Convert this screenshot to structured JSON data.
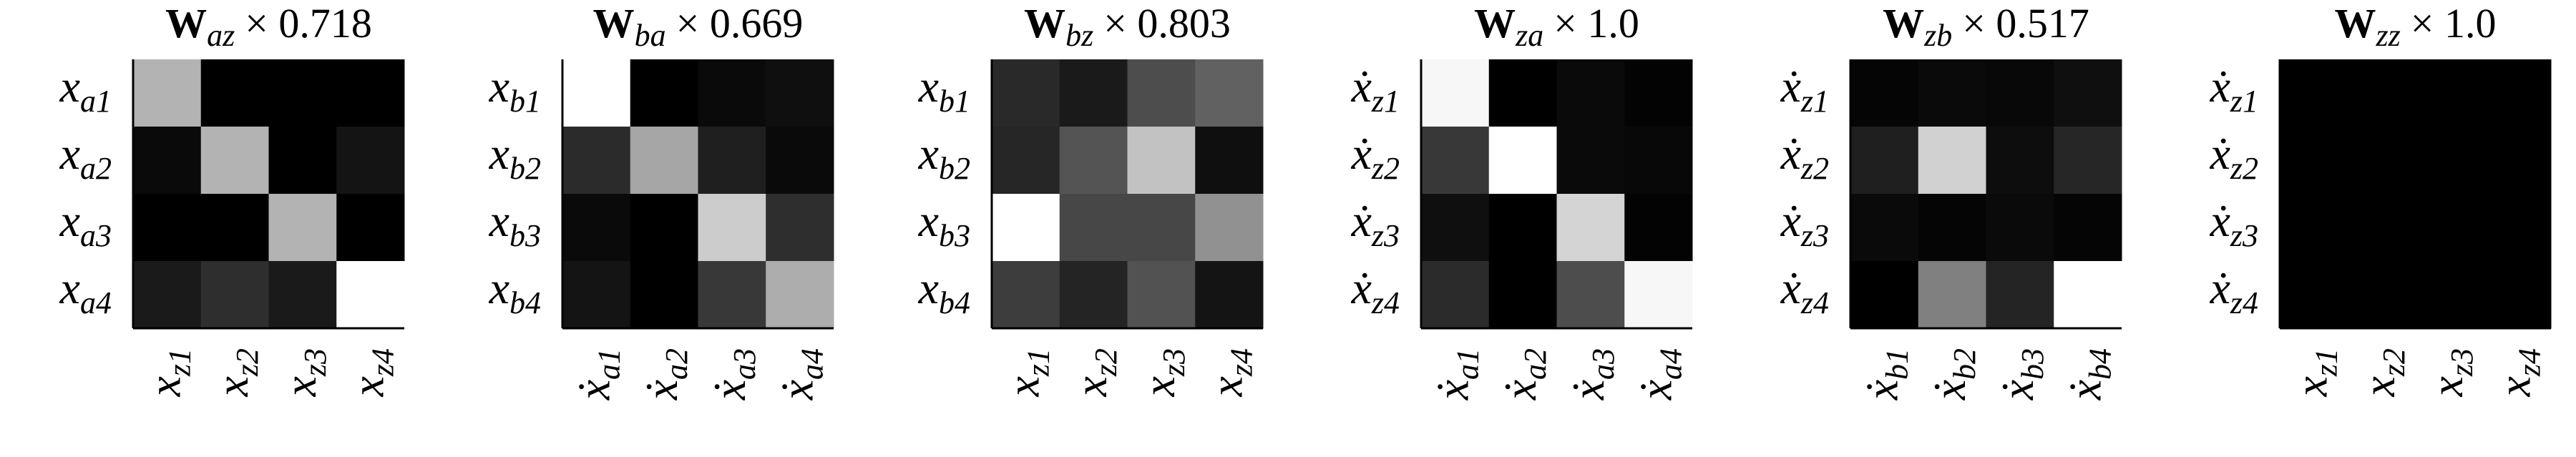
{
  "chart_data": [
    {
      "type": "heatmap",
      "cmap": "gray",
      "vlim": [
        0,
        1
      ],
      "title": {
        "symbol": "W",
        "subscript": "az",
        "suffix": "× 0.718"
      },
      "rows": [
        {
          "base": "x",
          "sub": "a1"
        },
        {
          "base": "x",
          "sub": "a2"
        },
        {
          "base": "x",
          "sub": "a3"
        },
        {
          "base": "x",
          "sub": "a4"
        }
      ],
      "columns": [
        {
          "base": "x",
          "sub": "z1"
        },
        {
          "base": "x",
          "sub": "z2"
        },
        {
          "base": "x",
          "sub": "z3"
        },
        {
          "base": "x",
          "sub": "z4"
        }
      ],
      "values": [
        [
          0.7,
          0,
          0,
          0
        ],
        [
          0.04,
          0.7,
          0,
          0.08
        ],
        [
          0,
          0,
          0.7,
          0
        ],
        [
          0.1,
          0.18,
          0.1,
          1
        ]
      ]
    },
    {
      "type": "heatmap",
      "cmap": "gray",
      "vlim": [
        0,
        1
      ],
      "title": {
        "symbol": "W",
        "subscript": "ba",
        "suffix": "× 0.669"
      },
      "rows": [
        {
          "base": "x",
          "sub": "b1"
        },
        {
          "base": "x",
          "sub": "b2"
        },
        {
          "base": "x",
          "sub": "b3"
        },
        {
          "base": "x",
          "sub": "b4"
        }
      ],
      "columns": [
        {
          "base": "ẋ",
          "sub": "a1"
        },
        {
          "base": "ẋ",
          "sub": "a2"
        },
        {
          "base": "ẋ",
          "sub": "a3"
        },
        {
          "base": "ẋ",
          "sub": "a4"
        }
      ],
      "values": [
        [
          1,
          0,
          0.04,
          0.06
        ],
        [
          0.17,
          0.65,
          0.12,
          0.04
        ],
        [
          0.04,
          0,
          0.8,
          0.18
        ],
        [
          0.08,
          0,
          0.22,
          0.68
        ]
      ]
    },
    {
      "type": "heatmap",
      "cmap": "gray",
      "vlim": [
        0,
        1
      ],
      "title": {
        "symbol": "W",
        "subscript": "bz",
        "suffix": "× 0.803"
      },
      "rows": [
        {
          "base": "x",
          "sub": "b1"
        },
        {
          "base": "x",
          "sub": "b2"
        },
        {
          "base": "x",
          "sub": "b3"
        },
        {
          "base": "x",
          "sub": "b4"
        }
      ],
      "columns": [
        {
          "base": "x",
          "sub": "z1"
        },
        {
          "base": "x",
          "sub": "z2"
        },
        {
          "base": "x",
          "sub": "z3"
        },
        {
          "base": "x",
          "sub": "z4"
        }
      ],
      "values": [
        [
          0.16,
          0.1,
          0.3,
          0.38
        ],
        [
          0.15,
          0.33,
          0.76,
          0.06
        ],
        [
          1,
          0.28,
          0.28,
          0.57
        ],
        [
          0.24,
          0.14,
          0.32,
          0.08
        ]
      ]
    },
    {
      "type": "heatmap",
      "cmap": "gray",
      "vlim": [
        0,
        1
      ],
      "title": {
        "symbol": "W",
        "subscript": "za",
        "suffix": "× 1.0"
      },
      "rows": [
        {
          "base": "ẋ",
          "sub": "z1"
        },
        {
          "base": "ẋ",
          "sub": "z2"
        },
        {
          "base": "ẋ",
          "sub": "z3"
        },
        {
          "base": "ẋ",
          "sub": "z4"
        }
      ],
      "columns": [
        {
          "base": "ẋ",
          "sub": "a1"
        },
        {
          "base": "ẋ",
          "sub": "a2"
        },
        {
          "base": "ẋ",
          "sub": "a3"
        },
        {
          "base": "ẋ",
          "sub": "a4"
        }
      ],
      "values": [
        [
          0.97,
          0,
          0.04,
          0.01
        ],
        [
          0.22,
          1,
          0.04,
          0.03
        ],
        [
          0.06,
          0,
          0.83,
          0.01
        ],
        [
          0.17,
          0,
          0.3,
          0.97
        ]
      ]
    },
    {
      "type": "heatmap",
      "cmap": "gray",
      "vlim": [
        0,
        1
      ],
      "title": {
        "symbol": "W",
        "subscript": "zb",
        "suffix": "× 0.517"
      },
      "rows": [
        {
          "base": "ẋ",
          "sub": "z1"
        },
        {
          "base": "ẋ",
          "sub": "z2"
        },
        {
          "base": "ẋ",
          "sub": "z3"
        },
        {
          "base": "ẋ",
          "sub": "z4"
        }
      ],
      "columns": [
        {
          "base": "ẋ",
          "sub": "b1"
        },
        {
          "base": "ẋ",
          "sub": "b2"
        },
        {
          "base": "ẋ",
          "sub": "b3"
        },
        {
          "base": "ẋ",
          "sub": "b4"
        }
      ],
      "values": [
        [
          0.02,
          0.04,
          0.03,
          0.06
        ],
        [
          0.12,
          0.82,
          0.05,
          0.15
        ],
        [
          0.04,
          0.02,
          0.04,
          0.02
        ],
        [
          0,
          0.5,
          0.14,
          1
        ]
      ]
    },
    {
      "type": "heatmap",
      "cmap": "gray",
      "vlim": [
        0,
        1
      ],
      "title": {
        "symbol": "W",
        "subscript": "zz",
        "suffix": "× 1.0"
      },
      "rows": [
        {
          "base": "ẋ",
          "sub": "z1"
        },
        {
          "base": "ẋ",
          "sub": "z2"
        },
        {
          "base": "ẋ",
          "sub": "z3"
        },
        {
          "base": "ẋ",
          "sub": "z4"
        }
      ],
      "columns": [
        {
          "base": "x",
          "sub": "z1"
        },
        {
          "base": "x",
          "sub": "z2"
        },
        {
          "base": "x",
          "sub": "z3"
        },
        {
          "base": "x",
          "sub": "z4"
        }
      ],
      "values": [
        [
          0,
          0,
          0,
          0
        ],
        [
          0,
          0,
          0,
          0
        ],
        [
          0,
          0,
          0,
          0
        ],
        [
          0,
          0,
          0,
          0
        ]
      ]
    }
  ]
}
